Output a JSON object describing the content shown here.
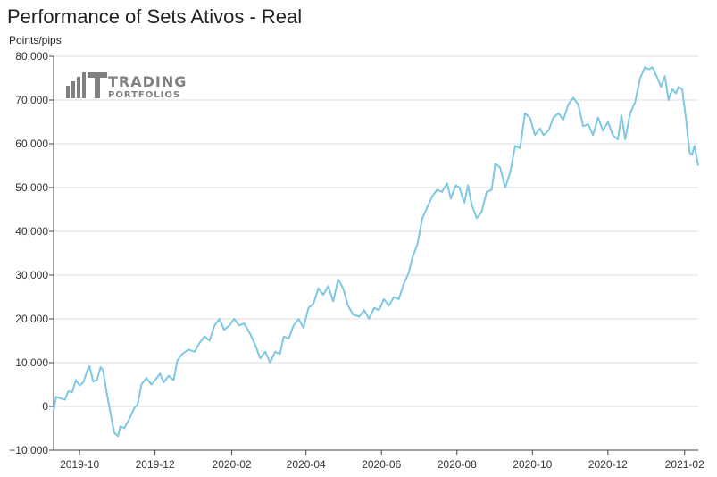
{
  "page": {
    "title": "Performance of Sets Ativos - Real",
    "unit_label": "Points/pips",
    "logo_text": [
      "TRADING",
      "PORTFOLIOS"
    ]
  },
  "colors": {
    "line": "#7ec8e3",
    "grid": "#dddddd",
    "axis": "#444444",
    "logo": "#808080"
  },
  "chart_data": {
    "type": "line",
    "title": "Performance of Sets Ativos - Real",
    "ylabel": "Points/pips",
    "xlabel": "",
    "ylim": [
      -10000,
      80000
    ],
    "xlim": [
      "2019-09-10",
      "2021-02-12"
    ],
    "grid": true,
    "legend": "none",
    "y_ticks": [
      {
        "value": -10000,
        "label": "−10,000"
      },
      {
        "value": 0,
        "label": "0"
      },
      {
        "value": 10000,
        "label": "10,000"
      },
      {
        "value": 20000,
        "label": "20,000"
      },
      {
        "value": 30000,
        "label": "30,000"
      },
      {
        "value": 40000,
        "label": "40,000"
      },
      {
        "value": 50000,
        "label": "50,000"
      },
      {
        "value": 60000,
        "label": "60,000"
      },
      {
        "value": 70000,
        "label": "70,000"
      },
      {
        "value": 80000,
        "label": "80,000"
      }
    ],
    "x_ticks": [
      {
        "value": "2019-10-01",
        "label": "2019-10"
      },
      {
        "value": "2019-12-01",
        "label": "2019-12"
      },
      {
        "value": "2020-02-01",
        "label": "2020-02"
      },
      {
        "value": "2020-04-01",
        "label": "2020-04"
      },
      {
        "value": "2020-06-01",
        "label": "2020-06"
      },
      {
        "value": "2020-08-01",
        "label": "2020-08"
      },
      {
        "value": "2020-10-01",
        "label": "2020-10"
      },
      {
        "value": "2020-12-01",
        "label": "2020-12"
      },
      {
        "value": "2021-02-01",
        "label": "2021-02"
      }
    ],
    "series": [
      {
        "points": [
          [
            "2019-09-10",
            -1000
          ],
          [
            "2019-09-12",
            2200
          ],
          [
            "2019-09-16",
            1800
          ],
          [
            "2019-09-19",
            1500
          ],
          [
            "2019-09-22",
            3500
          ],
          [
            "2019-09-25",
            3200
          ],
          [
            "2019-09-28",
            6000
          ],
          [
            "2019-10-01",
            4800
          ],
          [
            "2019-10-04",
            5500
          ],
          [
            "2019-10-07",
            8000
          ],
          [
            "2019-10-09",
            9200
          ],
          [
            "2019-10-12",
            5700
          ],
          [
            "2019-10-15",
            6000
          ],
          [
            "2019-10-18",
            9000
          ],
          [
            "2019-10-20",
            8200
          ],
          [
            "2019-10-23",
            3000
          ],
          [
            "2019-10-26",
            -1500
          ],
          [
            "2019-10-29",
            -6000
          ],
          [
            "2019-11-01",
            -6800
          ],
          [
            "2019-11-03",
            -4500
          ],
          [
            "2019-11-06",
            -5000
          ],
          [
            "2019-11-10",
            -3000
          ],
          [
            "2019-11-14",
            -500
          ],
          [
            "2019-11-17",
            500
          ],
          [
            "2019-11-20",
            5000
          ],
          [
            "2019-11-24",
            6500
          ],
          [
            "2019-11-28",
            5000
          ],
          [
            "2019-12-01",
            6000
          ],
          [
            "2019-12-05",
            7500
          ],
          [
            "2019-12-08",
            5500
          ],
          [
            "2019-12-12",
            7000
          ],
          [
            "2019-12-16",
            6000
          ],
          [
            "2019-12-19",
            10500
          ],
          [
            "2019-12-23",
            12000
          ],
          [
            "2019-12-28",
            13000
          ],
          [
            "2020-01-02",
            12500
          ],
          [
            "2020-01-06",
            14500
          ],
          [
            "2020-01-10",
            16000
          ],
          [
            "2020-01-14",
            15000
          ],
          [
            "2020-01-18",
            18500
          ],
          [
            "2020-01-22",
            20000
          ],
          [
            "2020-01-26",
            17500
          ],
          [
            "2020-01-30",
            18500
          ],
          [
            "2020-02-03",
            20000
          ],
          [
            "2020-02-07",
            18500
          ],
          [
            "2020-02-11",
            19000
          ],
          [
            "2020-02-16",
            16500
          ],
          [
            "2020-02-20",
            14000
          ],
          [
            "2020-02-24",
            11000
          ],
          [
            "2020-02-28",
            12500
          ],
          [
            "2020-03-03",
            10000
          ],
          [
            "2020-03-07",
            12500
          ],
          [
            "2020-03-11",
            12000
          ],
          [
            "2020-03-14",
            16000
          ],
          [
            "2020-03-18",
            15500
          ],
          [
            "2020-03-22",
            18500
          ],
          [
            "2020-03-26",
            20000
          ],
          [
            "2020-03-30",
            18000
          ],
          [
            "2020-04-03",
            22500
          ],
          [
            "2020-04-07",
            23500
          ],
          [
            "2020-04-11",
            27000
          ],
          [
            "2020-04-15",
            25500
          ],
          [
            "2020-04-19",
            27500
          ],
          [
            "2020-04-23",
            24000
          ],
          [
            "2020-04-27",
            29000
          ],
          [
            "2020-05-01",
            27000
          ],
          [
            "2020-05-05",
            23000
          ],
          [
            "2020-05-09",
            21000
          ],
          [
            "2020-05-14",
            20500
          ],
          [
            "2020-05-18",
            22000
          ],
          [
            "2020-05-22",
            20000
          ],
          [
            "2020-05-26",
            22500
          ],
          [
            "2020-05-30",
            22000
          ],
          [
            "2020-06-03",
            24500
          ],
          [
            "2020-06-07",
            23000
          ],
          [
            "2020-06-11",
            25000
          ],
          [
            "2020-06-15",
            24500
          ],
          [
            "2020-06-19",
            28000
          ],
          [
            "2020-06-23",
            30500
          ],
          [
            "2020-06-26",
            34000
          ],
          [
            "2020-06-30",
            37000
          ],
          [
            "2020-07-04",
            43000
          ],
          [
            "2020-07-08",
            45500
          ],
          [
            "2020-07-12",
            48000
          ],
          [
            "2020-07-16",
            49500
          ],
          [
            "2020-07-20",
            49000
          ],
          [
            "2020-07-24",
            51000
          ],
          [
            "2020-07-27",
            47500
          ],
          [
            "2020-07-31",
            50500
          ],
          [
            "2020-08-03",
            50000
          ],
          [
            "2020-08-07",
            46500
          ],
          [
            "2020-08-10",
            50500
          ],
          [
            "2020-08-13",
            46000
          ],
          [
            "2020-08-17",
            43000
          ],
          [
            "2020-08-21",
            44500
          ],
          [
            "2020-08-25",
            49000
          ],
          [
            "2020-08-29",
            49500
          ],
          [
            "2020-09-01",
            55500
          ],
          [
            "2020-09-05",
            54500
          ],
          [
            "2020-09-09",
            50000
          ],
          [
            "2020-09-13",
            53500
          ],
          [
            "2020-09-17",
            59500
          ],
          [
            "2020-09-21",
            59000
          ],
          [
            "2020-09-25",
            67000
          ],
          [
            "2020-09-29",
            66000
          ],
          [
            "2020-10-03",
            62000
          ],
          [
            "2020-10-07",
            63500
          ],
          [
            "2020-10-10",
            62000
          ],
          [
            "2020-10-14",
            63000
          ],
          [
            "2020-10-18",
            66000
          ],
          [
            "2020-10-22",
            67000
          ],
          [
            "2020-10-26",
            65500
          ],
          [
            "2020-10-30",
            69000
          ],
          [
            "2020-11-03",
            70500
          ],
          [
            "2020-11-07",
            69000
          ],
          [
            "2020-11-11",
            64000
          ],
          [
            "2020-11-15",
            64500
          ],
          [
            "2020-11-19",
            62000
          ],
          [
            "2020-11-23",
            66000
          ],
          [
            "2020-11-27",
            63000
          ],
          [
            "2020-12-01",
            65000
          ],
          [
            "2020-12-05",
            62000
          ],
          [
            "2020-12-09",
            61000
          ],
          [
            "2020-12-12",
            66500
          ],
          [
            "2020-12-15",
            61000
          ],
          [
            "2020-12-19",
            67000
          ],
          [
            "2020-12-23",
            69500
          ],
          [
            "2020-12-27",
            75000
          ],
          [
            "2020-12-31",
            77500
          ],
          [
            "2021-01-03",
            77000
          ],
          [
            "2021-01-06",
            77500
          ],
          [
            "2021-01-10",
            75000
          ],
          [
            "2021-01-13",
            73000
          ],
          [
            "2021-01-16",
            75500
          ],
          [
            "2021-01-19",
            70000
          ],
          [
            "2021-01-22",
            72500
          ],
          [
            "2021-01-25",
            71500
          ],
          [
            "2021-01-27",
            73000
          ],
          [
            "2021-01-30",
            72500
          ],
          [
            "2021-02-02",
            66000
          ],
          [
            "2021-02-05",
            58000
          ],
          [
            "2021-02-07",
            57500
          ],
          [
            "2021-02-09",
            59500
          ],
          [
            "2021-02-12",
            55000
          ]
        ]
      }
    ]
  }
}
